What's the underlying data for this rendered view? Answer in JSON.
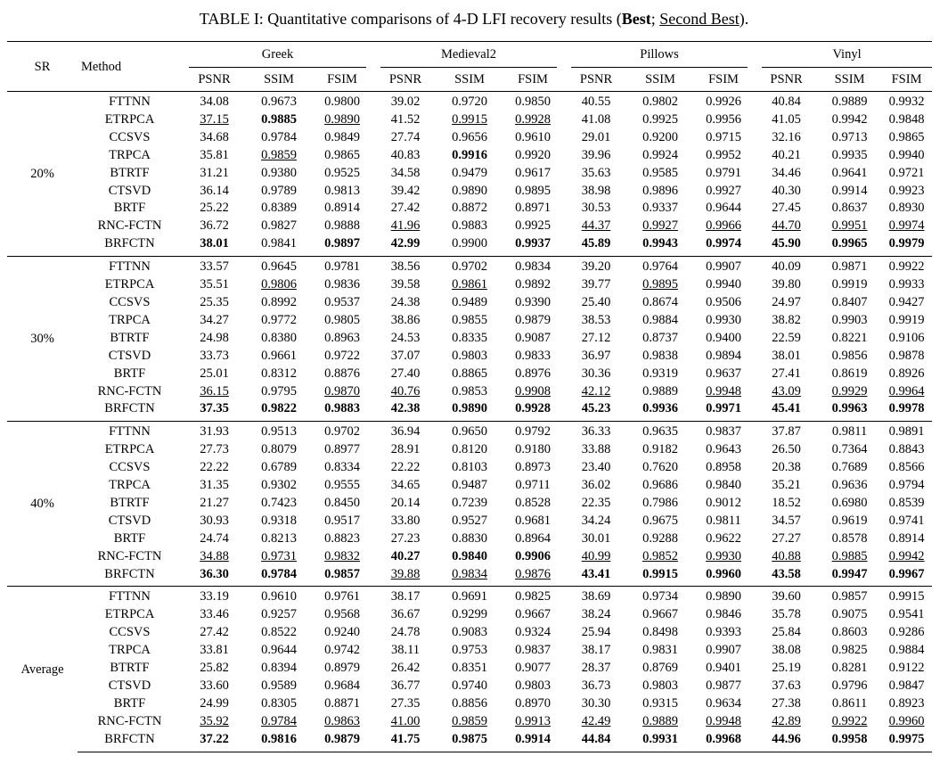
{
  "caption": {
    "prefix": "TABLE I: Quantitative comparisons of 4-D LFI recovery results (",
    "best_label": "Best",
    "separator": "; ",
    "second_label": "Second Best",
    "suffix": ")."
  },
  "headers": {
    "sr": "SR",
    "method": "Method",
    "datasets": [
      "Greek",
      "Medieval2",
      "Pillows",
      "Vinyl"
    ],
    "metrics": [
      "PSNR",
      "SSIM",
      "FSIM"
    ]
  },
  "groups": [
    {
      "sr": "20%",
      "rows": [
        {
          "method": "FTTNN",
          "values": [
            "34.08",
            "0.9673",
            "0.9800",
            "39.02",
            "0.9720",
            "0.9850",
            "40.55",
            "0.9802",
            "0.9926",
            "40.84",
            "0.9889",
            "0.9932"
          ]
        },
        {
          "method": "ETRPCA",
          "values": [
            "37.15",
            "0.9885",
            "0.9890",
            "41.52",
            "0.9915",
            "0.9928",
            "41.08",
            "0.9925",
            "0.9956",
            "41.05",
            "0.9942",
            "0.9848"
          ]
        },
        {
          "method": "CCSVS",
          "values": [
            "34.68",
            "0.9784",
            "0.9849",
            "27.74",
            "0.9656",
            "0.9610",
            "29.01",
            "0.9200",
            "0.9715",
            "32.16",
            "0.9713",
            "0.9865"
          ]
        },
        {
          "method": "TRPCA",
          "values": [
            "35.81",
            "0.9859",
            "0.9865",
            "40.83",
            "0.9916",
            "0.9920",
            "39.96",
            "0.9924",
            "0.9952",
            "40.21",
            "0.9935",
            "0.9940"
          ]
        },
        {
          "method": "BTRTF",
          "values": [
            "31.21",
            "0.9380",
            "0.9525",
            "34.58",
            "0.9479",
            "0.9617",
            "35.63",
            "0.9585",
            "0.9791",
            "34.46",
            "0.9641",
            "0.9721"
          ]
        },
        {
          "method": "CTSVD",
          "values": [
            "36.14",
            "0.9789",
            "0.9813",
            "39.42",
            "0.9890",
            "0.9895",
            "38.98",
            "0.9896",
            "0.9927",
            "40.30",
            "0.9914",
            "0.9923"
          ]
        },
        {
          "method": "BRTF",
          "values": [
            "25.22",
            "0.8389",
            "0.8914",
            "27.42",
            "0.8872",
            "0.8971",
            "30.53",
            "0.9337",
            "0.9644",
            "27.45",
            "0.8637",
            "0.8930"
          ]
        },
        {
          "method": "RNC-FCTN",
          "values": [
            "36.72",
            "0.9827",
            "0.9888",
            "41.96",
            "0.9883",
            "0.9925",
            "44.37",
            "0.9927",
            "0.9966",
            "44.70",
            "0.9951",
            "0.9974"
          ]
        },
        {
          "method": "BRFCTN",
          "values": [
            "38.01",
            "0.9841",
            "0.9897",
            "42.99",
            "0.9900",
            "0.9937",
            "45.89",
            "0.9943",
            "0.9974",
            "45.90",
            "0.9965",
            "0.9979"
          ]
        }
      ]
    },
    {
      "sr": "30%",
      "rows": [
        {
          "method": "FTTNN",
          "values": [
            "33.57",
            "0.9645",
            "0.9781",
            "38.56",
            "0.9702",
            "0.9834",
            "39.20",
            "0.9764",
            "0.9907",
            "40.09",
            "0.9871",
            "0.9922"
          ]
        },
        {
          "method": "ETRPCA",
          "values": [
            "35.51",
            "0.9806",
            "0.9836",
            "39.58",
            "0.9861",
            "0.9892",
            "39.77",
            "0.9895",
            "0.9940",
            "39.80",
            "0.9919",
            "0.9933"
          ]
        },
        {
          "method": "CCSVS",
          "values": [
            "25.35",
            "0.8992",
            "0.9537",
            "24.38",
            "0.9489",
            "0.9390",
            "25.40",
            "0.8674",
            "0.9506",
            "24.97",
            "0.8407",
            "0.9427"
          ]
        },
        {
          "method": "TRPCA",
          "values": [
            "34.27",
            "0.9772",
            "0.9805",
            "38.86",
            "0.9855",
            "0.9879",
            "38.53",
            "0.9884",
            "0.9930",
            "38.82",
            "0.9903",
            "0.9919"
          ]
        },
        {
          "method": "BTRTF",
          "values": [
            "24.98",
            "0.8380",
            "0.8963",
            "24.53",
            "0.8335",
            "0.9087",
            "27.12",
            "0.8737",
            "0.9400",
            "22.59",
            "0.8221",
            "0.9106"
          ]
        },
        {
          "method": "CTSVD",
          "values": [
            "33.73",
            "0.9661",
            "0.9722",
            "37.07",
            "0.9803",
            "0.9833",
            "36.97",
            "0.9838",
            "0.9894",
            "38.01",
            "0.9856",
            "0.9878"
          ]
        },
        {
          "method": "BRTF",
          "values": [
            "25.01",
            "0.8312",
            "0.8876",
            "27.40",
            "0.8865",
            "0.8976",
            "30.36",
            "0.9319",
            "0.9637",
            "27.41",
            "0.8619",
            "0.8926"
          ]
        },
        {
          "method": "RNC-FCTN",
          "values": [
            "36.15",
            "0.9795",
            "0.9870",
            "40.76",
            "0.9853",
            "0.9908",
            "42.12",
            "0.9889",
            "0.9948",
            "43.09",
            "0.9929",
            "0.9964"
          ]
        },
        {
          "method": "BRFCTN",
          "values": [
            "37.35",
            "0.9822",
            "0.9883",
            "42.38",
            "0.9890",
            "0.9928",
            "45.23",
            "0.9936",
            "0.9971",
            "45.41",
            "0.9963",
            "0.9978"
          ]
        }
      ]
    },
    {
      "sr": "40%",
      "rows": [
        {
          "method": "FTTNN",
          "values": [
            "31.93",
            "0.9513",
            "0.9702",
            "36.94",
            "0.9650",
            "0.9792",
            "36.33",
            "0.9635",
            "0.9837",
            "37.87",
            "0.9811",
            "0.9891"
          ]
        },
        {
          "method": "ETRPCA",
          "values": [
            "27.73",
            "0.8079",
            "0.8977",
            "28.91",
            "0.8120",
            "0.9180",
            "33.88",
            "0.9182",
            "0.9643",
            "26.50",
            "0.7364",
            "0.8843"
          ]
        },
        {
          "method": "CCSVS",
          "values": [
            "22.22",
            "0.6789",
            "0.8334",
            "22.22",
            "0.8103",
            "0.8973",
            "23.40",
            "0.7620",
            "0.8958",
            "20.38",
            "0.7689",
            "0.8566"
          ]
        },
        {
          "method": "TRPCA",
          "values": [
            "31.35",
            "0.9302",
            "0.9555",
            "34.65",
            "0.9487",
            "0.9711",
            "36.02",
            "0.9686",
            "0.9840",
            "35.21",
            "0.9636",
            "0.9794"
          ]
        },
        {
          "method": "BTRTF",
          "values": [
            "21.27",
            "0.7423",
            "0.8450",
            "20.14",
            "0.7239",
            "0.8528",
            "22.35",
            "0.7986",
            "0.9012",
            "18.52",
            "0.6980",
            "0.8539"
          ]
        },
        {
          "method": "CTSVD",
          "values": [
            "30.93",
            "0.9318",
            "0.9517",
            "33.80",
            "0.9527",
            "0.9681",
            "34.24",
            "0.9675",
            "0.9811",
            "34.57",
            "0.9619",
            "0.9741"
          ]
        },
        {
          "method": "BRTF",
          "values": [
            "24.74",
            "0.8213",
            "0.8823",
            "27.23",
            "0.8830",
            "0.8964",
            "30.01",
            "0.9288",
            "0.9622",
            "27.27",
            "0.8578",
            "0.8914"
          ]
        },
        {
          "method": "RNC-FCTN",
          "values": [
            "34.88",
            "0.9731",
            "0.9832",
            "40.27",
            "0.9840",
            "0.9906",
            "40.99",
            "0.9852",
            "0.9930",
            "40.88",
            "0.9885",
            "0.9942"
          ]
        },
        {
          "method": "BRFCTN",
          "values": [
            "36.30",
            "0.9784",
            "0.9857",
            "39.88",
            "0.9834",
            "0.9876",
            "43.41",
            "0.9915",
            "0.9960",
            "43.58",
            "0.9947",
            "0.9967"
          ]
        }
      ]
    },
    {
      "sr": "Average",
      "rows": [
        {
          "method": "FTTNN",
          "values": [
            "33.19",
            "0.9610",
            "0.9761",
            "38.17",
            "0.9691",
            "0.9825",
            "38.69",
            "0.9734",
            "0.9890",
            "39.60",
            "0.9857",
            "0.9915"
          ]
        },
        {
          "method": "ETRPCA",
          "values": [
            "33.46",
            "0.9257",
            "0.9568",
            "36.67",
            "0.9299",
            "0.9667",
            "38.24",
            "0.9667",
            "0.9846",
            "35.78",
            "0.9075",
            "0.9541"
          ]
        },
        {
          "method": "CCSVS",
          "values": [
            "27.42",
            "0.8522",
            "0.9240",
            "24.78",
            "0.9083",
            "0.9324",
            "25.94",
            "0.8498",
            "0.9393",
            "25.84",
            "0.8603",
            "0.9286"
          ]
        },
        {
          "method": "TRPCA",
          "values": [
            "33.81",
            "0.9644",
            "0.9742",
            "38.11",
            "0.9753",
            "0.9837",
            "38.17",
            "0.9831",
            "0.9907",
            "38.08",
            "0.9825",
            "0.9884"
          ]
        },
        {
          "method": "BTRTF",
          "values": [
            "25.82",
            "0.8394",
            "0.8979",
            "26.42",
            "0.8351",
            "0.9077",
            "28.37",
            "0.8769",
            "0.9401",
            "25.19",
            "0.8281",
            "0.9122"
          ]
        },
        {
          "method": "CTSVD",
          "values": [
            "33.60",
            "0.9589",
            "0.9684",
            "36.77",
            "0.9740",
            "0.9803",
            "36.73",
            "0.9803",
            "0.9877",
            "37.63",
            "0.9796",
            "0.9847"
          ]
        },
        {
          "method": "BRTF",
          "values": [
            "24.99",
            "0.8305",
            "0.8871",
            "27.35",
            "0.8856",
            "0.8970",
            "30.30",
            "0.9315",
            "0.9634",
            "27.38",
            "0.8611",
            "0.8923"
          ]
        },
        {
          "method": "RNC-FCTN",
          "values": [
            "35.92",
            "0.9784",
            "0.9863",
            "41.00",
            "0.9859",
            "0.9913",
            "42.49",
            "0.9889",
            "0.9948",
            "42.89",
            "0.9922",
            "0.9960"
          ]
        },
        {
          "method": "BRFCTN",
          "values": [
            "37.22",
            "0.9816",
            "0.9879",
            "41.75",
            "0.9875",
            "0.9914",
            "44.84",
            "0.9931",
            "0.9968",
            "44.96",
            "0.9958",
            "0.9975"
          ]
        }
      ]
    }
  ]
}
